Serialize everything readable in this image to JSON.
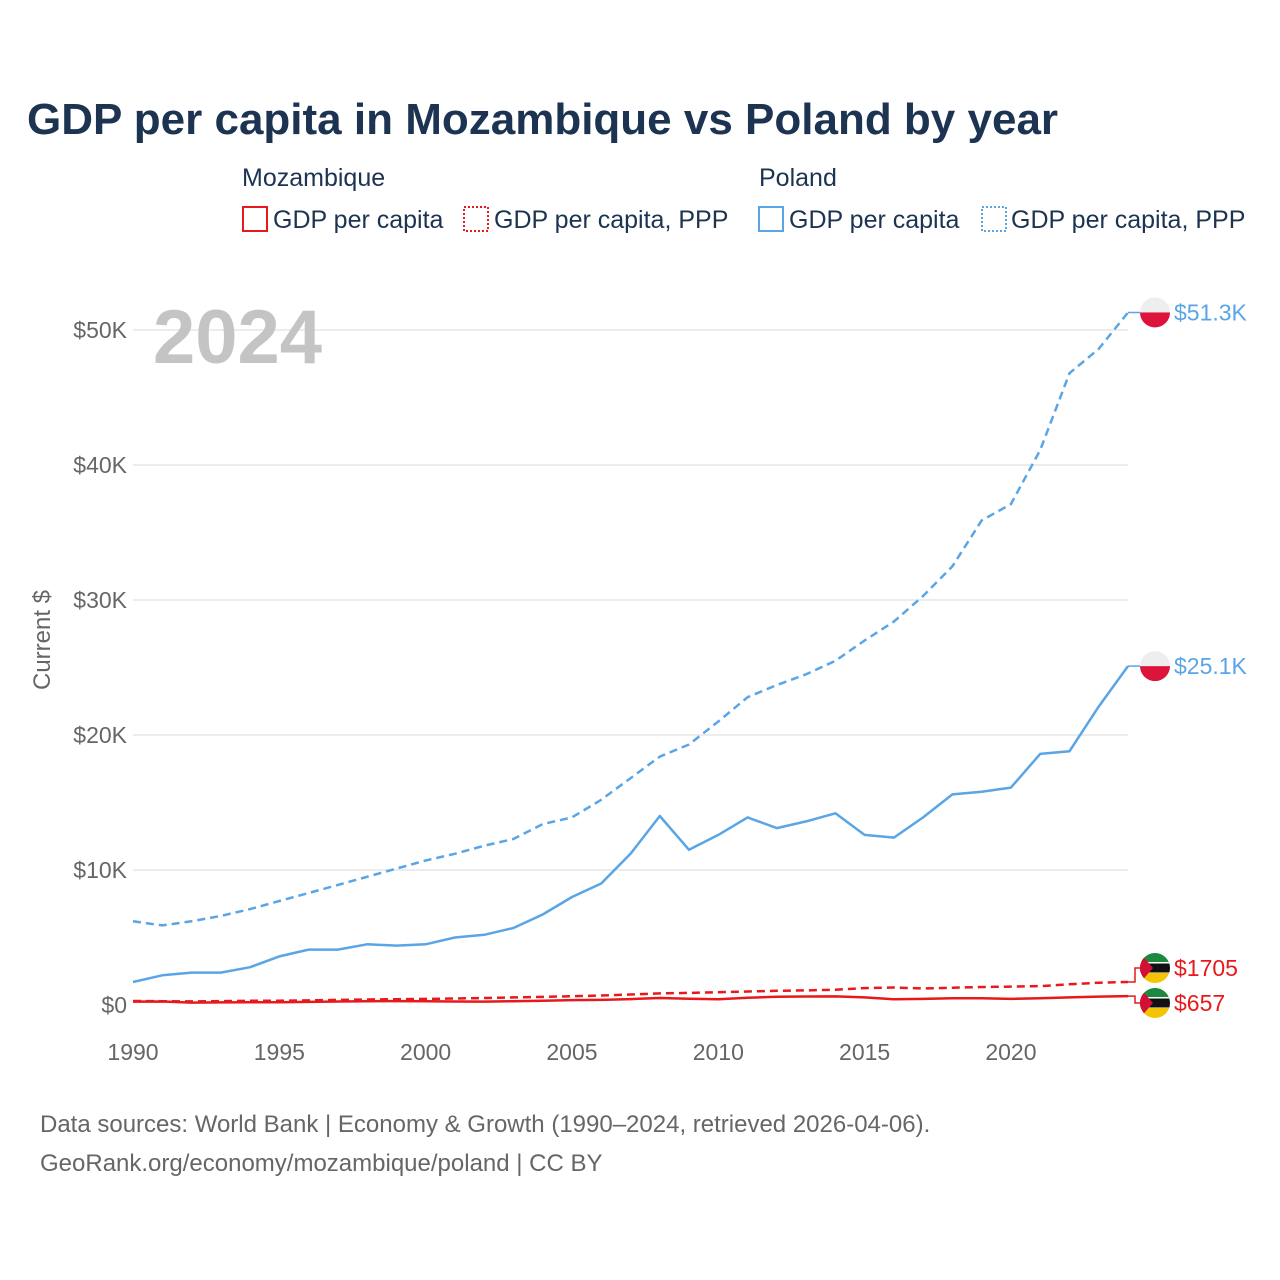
{
  "colors": {
    "mozambique": "#e8191c",
    "poland": "#5aa5e6",
    "grid": "#e6e6e6",
    "title": "#1c3352",
    "muted": "#666666"
  },
  "labels": {
    "moz_gdp_end": "$657",
    "moz_ppp_end": "$1705",
    "pol_gdp_end": "$25.1K",
    "pol_ppp_end": "$51.3K"
  },
  "footer": {
    "line1": "Data sources: World Bank | Economy & Growth (1990–2024, retrieved 2026-04-06).",
    "line2": "GeoRank.org/economy/mozambique/poland | CC BY"
  },
  "chart_data": {
    "type": "line",
    "title": "GDP per capita in Mozambique vs Poland by year",
    "ylabel": "Current $",
    "xlabel": "",
    "ylim": [
      0,
      53000
    ],
    "xlim": [
      1990,
      2024
    ],
    "current_year_label": "2024",
    "x_ticks": [
      1990,
      1995,
      2000,
      2005,
      2010,
      2015,
      2020
    ],
    "y_ticks": [
      {
        "value": 0,
        "label": "$0"
      },
      {
        "value": 10000,
        "label": "$10K"
      },
      {
        "value": 20000,
        "label": "$20K"
      },
      {
        "value": 30000,
        "label": "$30K"
      },
      {
        "value": 40000,
        "label": "$40K"
      },
      {
        "value": 50000,
        "label": "$50K"
      }
    ],
    "legend": [
      {
        "group": "Mozambique",
        "items": [
          "GDP per capita",
          "GDP per capita, PPP"
        ]
      },
      {
        "group": "Poland",
        "items": [
          "GDP per capita",
          "GDP per capita, PPP"
        ]
      }
    ],
    "x": [
      1990,
      1991,
      1992,
      1993,
      1994,
      1995,
      1996,
      1997,
      1998,
      1999,
      2000,
      2001,
      2002,
      2003,
      2004,
      2005,
      2006,
      2007,
      2008,
      2009,
      2010,
      2011,
      2012,
      2013,
      2014,
      2015,
      2016,
      2017,
      2018,
      2019,
      2020,
      2021,
      2022,
      2023,
      2024
    ],
    "series": [
      {
        "name": "Mozambique GDP per capita",
        "country": "Mozambique",
        "style": "solid",
        "values": [
          250,
          260,
          180,
          190,
          200,
          210,
          230,
          260,
          280,
          290,
          280,
          260,
          250,
          280,
          320,
          360,
          380,
          440,
          520,
          460,
          420,
          540,
          610,
          630,
          640,
          560,
          420,
          450,
          500,
          500,
          450,
          500,
          560,
          620,
          657
        ]
      },
      {
        "name": "Mozambique GDP per capita, PPP",
        "country": "Mozambique",
        "style": "dashed",
        "values": [
          300,
          280,
          270,
          290,
          310,
          320,
          340,
          380,
          410,
          430,
          450,
          480,
          520,
          560,
          600,
          650,
          700,
          780,
          860,
          900,
          950,
          1000,
          1050,
          1080,
          1130,
          1250,
          1300,
          1220,
          1280,
          1330,
          1360,
          1400,
          1530,
          1650,
          1705
        ]
      },
      {
        "name": "Poland GDP per capita",
        "country": "Poland",
        "style": "solid",
        "values": [
          1700,
          2200,
          2400,
          2400,
          2800,
          3600,
          4100,
          4100,
          4500,
          4400,
          4500,
          5000,
          5200,
          5700,
          6700,
          8000,
          9000,
          11200,
          14000,
          11500,
          12600,
          13900,
          13100,
          13600,
          14200,
          12600,
          12400,
          13900,
          15600,
          15800,
          16100,
          18600,
          18800,
          22100,
          25100
        ]
      },
      {
        "name": "Poland GDP per capita, PPP",
        "country": "Poland",
        "style": "dashed",
        "values": [
          6200,
          5900,
          6200,
          6600,
          7100,
          7700,
          8300,
          8900,
          9500,
          10100,
          10700,
          11200,
          11800,
          12300,
          13400,
          13900,
          15200,
          16800,
          18400,
          19300,
          21000,
          22800,
          23700,
          24500,
          25500,
          27000,
          28400,
          30300,
          32500,
          35900,
          37100,
          41100,
          46800,
          48600,
          51300
        ]
      }
    ]
  }
}
